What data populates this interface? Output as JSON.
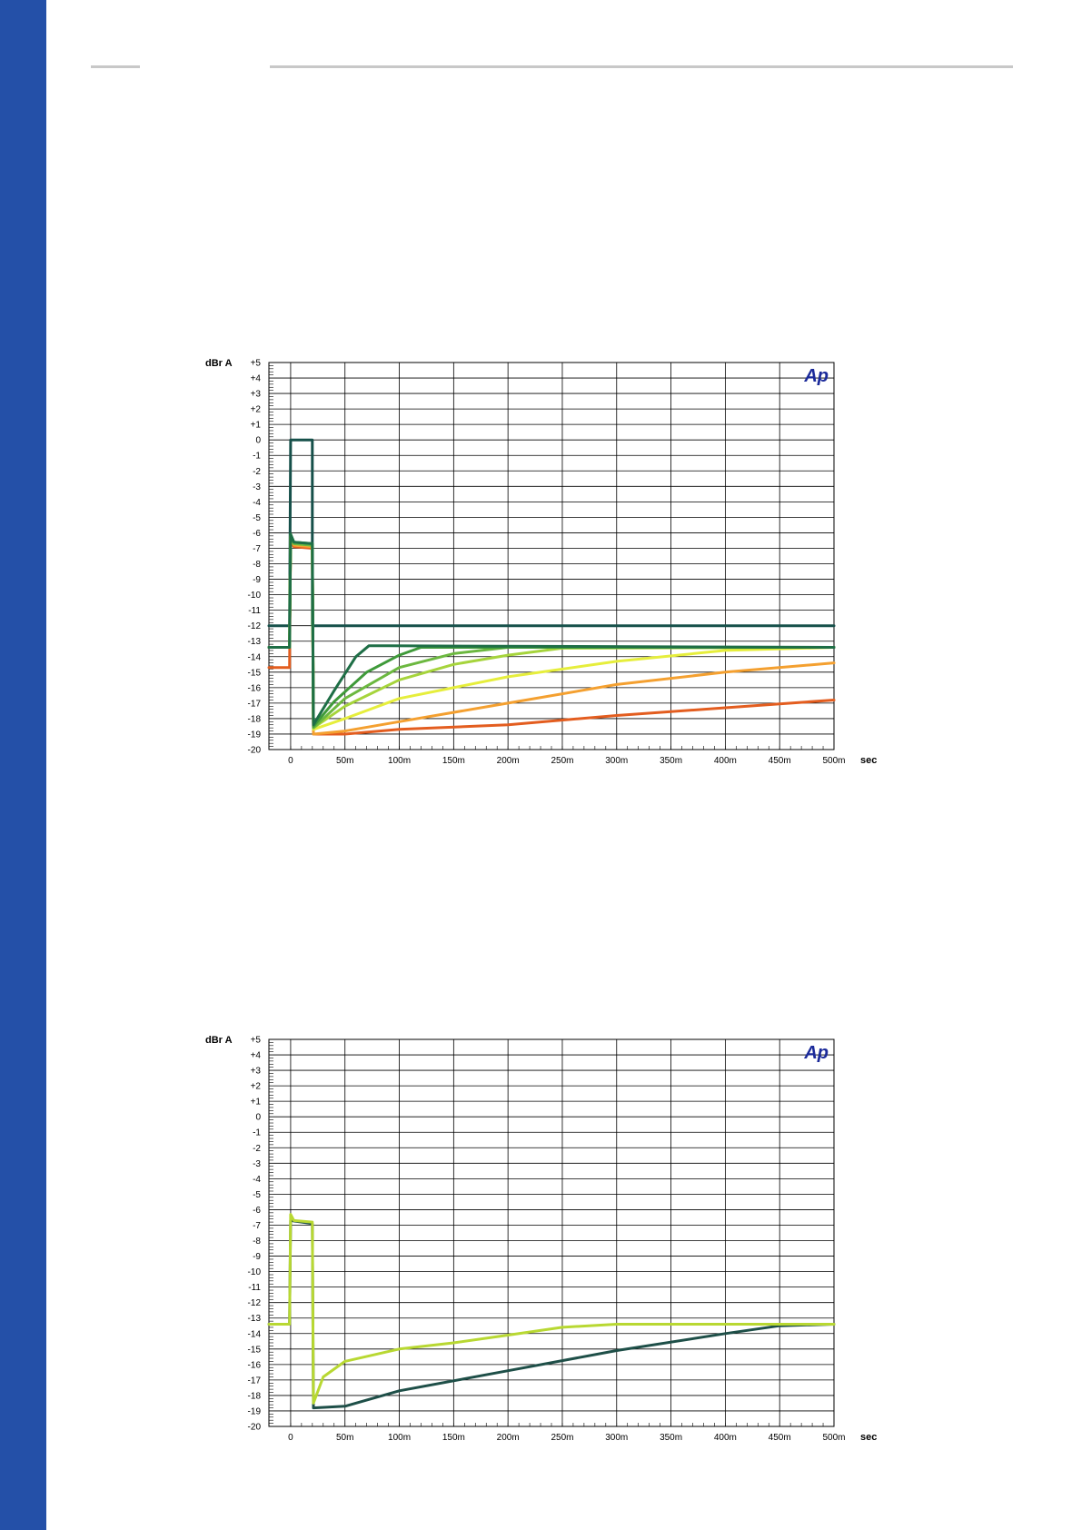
{
  "colors": {
    "sidebar": "#2450a8",
    "rule": "#c8c8c8",
    "grid": "#000000",
    "logo": "#1b2a9a"
  },
  "chart_data": [
    {
      "type": "line",
      "ylabel": "dBr A",
      "xlabel": "sec",
      "logo": "Ap",
      "ylim": [
        -20,
        5
      ],
      "xlim": [
        -0.02,
        0.5
      ],
      "y_ticks": [
        "+5",
        "+4",
        "+3",
        "+2",
        "+1",
        "0",
        "-1",
        "-2",
        "-3",
        "-4",
        "-5",
        "-6",
        "-7",
        "-8",
        "-9",
        "-10",
        "-11",
        "-12",
        "-13",
        "-14",
        "-15",
        "-16",
        "-17",
        "-18",
        "-19",
        "-20"
      ],
      "x_ticks": [
        "0",
        "50m",
        "100m",
        "150m",
        "200m",
        "250m",
        "300m",
        "350m",
        "400m",
        "450m",
        "500m"
      ],
      "grid": true,
      "series": [
        {
          "color": "#16504a",
          "points": [
            [
              -0.02,
              -12
            ],
            [
              -0.001,
              -12
            ],
            [
              0,
              0
            ],
            [
              0.02,
              0
            ],
            [
              0.02,
              -12
            ],
            [
              0.5,
              -12
            ]
          ]
        },
        {
          "color": "#e35d1f",
          "points": [
            [
              -0.02,
              -14.7
            ],
            [
              -0.001,
              -14.7
            ],
            [
              0,
              -6.5
            ],
            [
              0.003,
              -6.9
            ],
            [
              0.02,
              -7
            ],
            [
              0.021,
              -19
            ],
            [
              0.05,
              -19
            ],
            [
              0.1,
              -18.7
            ],
            [
              0.2,
              -18.4
            ],
            [
              0.3,
              -17.8
            ],
            [
              0.4,
              -17.3
            ],
            [
              0.5,
              -16.8
            ]
          ]
        },
        {
          "color": "#f4a030",
          "points": [
            [
              -0.02,
              -13.4
            ],
            [
              -0.001,
              -13.4
            ],
            [
              0,
              -6.3
            ],
            [
              0.003,
              -6.8
            ],
            [
              0.02,
              -6.9
            ],
            [
              0.021,
              -19
            ],
            [
              0.05,
              -18.8
            ],
            [
              0.1,
              -18.2
            ],
            [
              0.2,
              -17
            ],
            [
              0.3,
              -15.8
            ],
            [
              0.4,
              -15
            ],
            [
              0.5,
              -14.4
            ]
          ]
        },
        {
          "color": "#e6ee3c",
          "points": [
            [
              -0.02,
              -13.4
            ],
            [
              -0.001,
              -13.4
            ],
            [
              0,
              -6.2
            ],
            [
              0.003,
              -6.7
            ],
            [
              0.02,
              -6.8
            ],
            [
              0.021,
              -18.7
            ],
            [
              0.05,
              -18
            ],
            [
              0.1,
              -16.7
            ],
            [
              0.2,
              -15.3
            ],
            [
              0.3,
              -14.3
            ],
            [
              0.4,
              -13.6
            ],
            [
              0.5,
              -13.4
            ]
          ]
        },
        {
          "color": "#a6d43c",
          "points": [
            [
              -0.02,
              -13.4
            ],
            [
              -0.001,
              -13.4
            ],
            [
              0,
              -6.2
            ],
            [
              0.003,
              -6.7
            ],
            [
              0.02,
              -6.8
            ],
            [
              0.021,
              -18.6
            ],
            [
              0.05,
              -17.2
            ],
            [
              0.1,
              -15.5
            ],
            [
              0.15,
              -14.5
            ],
            [
              0.2,
              -13.9
            ],
            [
              0.25,
              -13.45
            ],
            [
              0.5,
              -13.4
            ]
          ]
        },
        {
          "color": "#6cb840",
          "points": [
            [
              -0.02,
              -13.4
            ],
            [
              -0.001,
              -13.4
            ],
            [
              0,
              -6.1
            ],
            [
              0.003,
              -6.7
            ],
            [
              0.02,
              -6.8
            ],
            [
              0.021,
              -18.6
            ],
            [
              0.05,
              -16.7
            ],
            [
              0.1,
              -14.7
            ],
            [
              0.15,
              -13.8
            ],
            [
              0.2,
              -13.4
            ],
            [
              0.5,
              -13.4
            ]
          ]
        },
        {
          "color": "#3f9a3a",
          "points": [
            [
              -0.02,
              -13.4
            ],
            [
              -0.001,
              -13.4
            ],
            [
              0,
              -6.1
            ],
            [
              0.003,
              -6.6
            ],
            [
              0.02,
              -6.7
            ],
            [
              0.021,
              -18.5
            ],
            [
              0.04,
              -16.9
            ],
            [
              0.07,
              -15
            ],
            [
              0.1,
              -13.9
            ],
            [
              0.12,
              -13.4
            ],
            [
              0.5,
              -13.4
            ]
          ]
        },
        {
          "color": "#1e6e46",
          "points": [
            [
              -0.02,
              -13.4
            ],
            [
              -0.001,
              -13.4
            ],
            [
              0,
              -6.1
            ],
            [
              0.003,
              -6.6
            ],
            [
              0.02,
              -6.7
            ],
            [
              0.021,
              -18.4
            ],
            [
              0.04,
              -16.2
            ],
            [
              0.06,
              -14
            ],
            [
              0.072,
              -13.3
            ],
            [
              0.09,
              -13.3
            ],
            [
              0.5,
              -13.4
            ]
          ]
        }
      ]
    },
    {
      "type": "line",
      "ylabel": "dBr A",
      "xlabel": "sec",
      "logo": "Ap",
      "ylim": [
        -20,
        5
      ],
      "xlim": [
        -0.02,
        0.5
      ],
      "y_ticks": [
        "+5",
        "+4",
        "+3",
        "+2",
        "+1",
        "0",
        "-1",
        "-2",
        "-3",
        "-4",
        "-5",
        "-6",
        "-7",
        "-8",
        "-9",
        "-10",
        "-11",
        "-12",
        "-13",
        "-14",
        "-15",
        "-16",
        "-17",
        "-18",
        "-19",
        "-20"
      ],
      "x_ticks": [
        "0",
        "50m",
        "100m",
        "150m",
        "200m",
        "250m",
        "300m",
        "350m",
        "400m",
        "450m",
        "500m"
      ],
      "grid": true,
      "series": [
        {
          "color": "#1e4f48",
          "points": [
            [
              -0.02,
              -13.4
            ],
            [
              -0.001,
              -13.4
            ],
            [
              0,
              -6.7
            ],
            [
              0.02,
              -6.9
            ],
            [
              0.021,
              -18.8
            ],
            [
              0.05,
              -18.7
            ],
            [
              0.1,
              -17.7
            ],
            [
              0.2,
              -16.4
            ],
            [
              0.3,
              -15.1
            ],
            [
              0.4,
              -14
            ],
            [
              0.45,
              -13.5
            ],
            [
              0.5,
              -13.4
            ]
          ]
        },
        {
          "color": "#b8d832",
          "points": [
            [
              -0.02,
              -13.4
            ],
            [
              -0.001,
              -13.4
            ],
            [
              0,
              -6.3
            ],
            [
              0.003,
              -6.7
            ],
            [
              0.02,
              -6.8
            ],
            [
              0.021,
              -18.5
            ],
            [
              0.03,
              -16.8
            ],
            [
              0.05,
              -15.8
            ],
            [
              0.1,
              -15
            ],
            [
              0.15,
              -14.6
            ],
            [
              0.2,
              -14.1
            ],
            [
              0.25,
              -13.6
            ],
            [
              0.3,
              -13.4
            ],
            [
              0.5,
              -13.4
            ]
          ]
        }
      ]
    }
  ]
}
